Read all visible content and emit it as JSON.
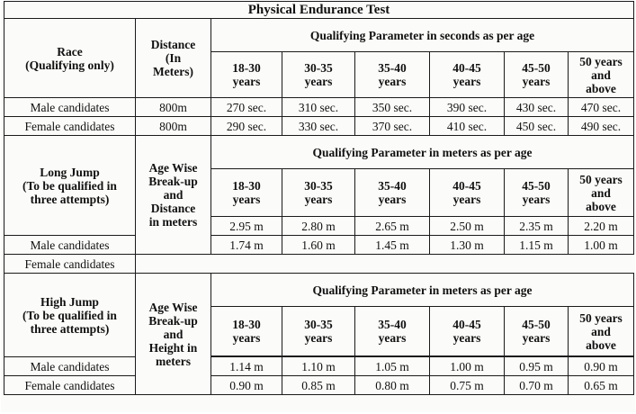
{
  "title": "Physical Endurance Test",
  "ages": [
    "18-30 years",
    "30-35 years",
    "35-40 years",
    "40-45 years",
    "45-50 years",
    "50 years and above"
  ],
  "race": {
    "label_line1": "Race",
    "label_line2": "(Qualifying only)",
    "measure_line1": "Distance",
    "measure_line2": "(In",
    "measure_line3": "Meters)",
    "parameter": "Qualifying Parameter in seconds as per age",
    "rows": [
      {
        "candidate": "Male candidates",
        "distance": "800m",
        "values": [
          "270 sec.",
          "310 sec.",
          "350 sec.",
          "390 sec.",
          "430 sec.",
          "470 sec."
        ]
      },
      {
        "candidate": "Female candidates",
        "distance": "800m",
        "values": [
          "290 sec.",
          "330 sec.",
          "370 sec.",
          "410 sec.",
          "450 sec.",
          "490 sec."
        ]
      }
    ]
  },
  "long_jump": {
    "label_line1": "Long Jump",
    "label_line2": "(To be qualified in",
    "label_line3": "three attempts)",
    "measure_line1": "Age Wise",
    "measure_line2": "Break-up",
    "measure_line3": "and",
    "measure_line4": "Distance",
    "measure_line5": "in meters",
    "parameter": "Qualifying Parameter in meters as per age",
    "rows": [
      {
        "candidate": "Male candidates",
        "values": [
          "2.95 m",
          "2.80 m",
          "2.65 m",
          "2.50 m",
          "2.35 m",
          "2.20 m"
        ]
      },
      {
        "candidate": "Female candidates",
        "values": [
          "1.74 m",
          "1.60 m",
          "1.45 m",
          "1.30 m",
          "1.15 m",
          "1.00 m"
        ]
      }
    ]
  },
  "high_jump": {
    "label_line1": "High Jump",
    "label_line2": "(To be qualified in",
    "label_line3": "three attempts)",
    "measure_line1": "Age Wise",
    "measure_line2": "Break-up",
    "measure_line3": "and",
    "measure_line4": "Height in",
    "measure_line5": "meters",
    "parameter": "Qualifying Parameter in meters as per age",
    "rows": [
      {
        "candidate": "Male candidates",
        "values": [
          "1.14 m",
          "1.10 m",
          "1.05 m",
          "1.00 m",
          "0.95 m",
          "0.90 m"
        ]
      },
      {
        "candidate": "Female candidates",
        "values": [
          "0.90 m",
          "0.85 m",
          "0.80 m",
          "0.75 m",
          "0.70 m",
          "0.65 m"
        ]
      }
    ]
  }
}
